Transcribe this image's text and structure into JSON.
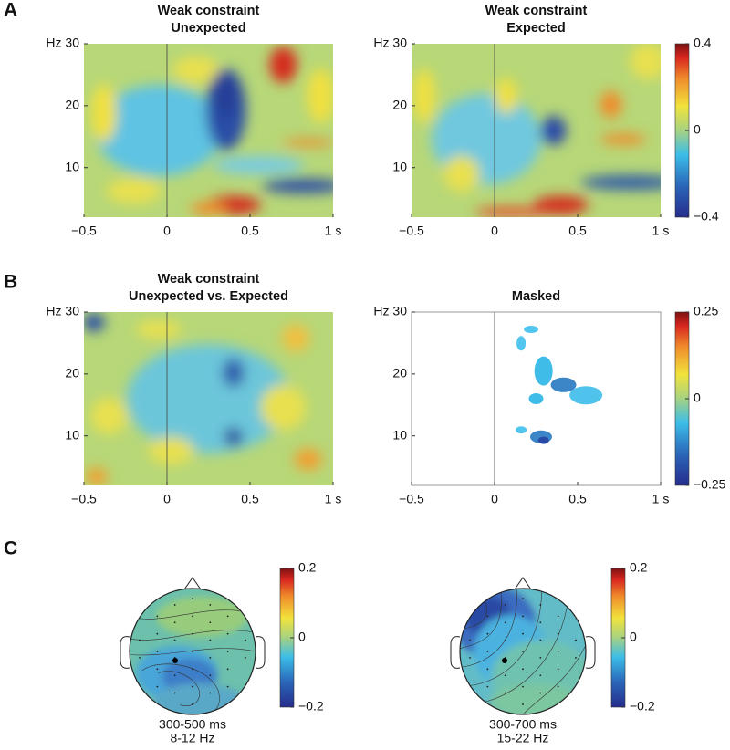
{
  "panel_labels": [
    "A",
    "B",
    "C"
  ],
  "chart_data": [
    {
      "type": "heatmap",
      "title": [
        "Weak constraint",
        "Unexpected"
      ],
      "xlim": [
        -0.5,
        1
      ],
      "ylim": [
        2,
        30
      ],
      "xticks": [
        {
          "value": -0.5,
          "label": "−0.5"
        },
        0,
        0.5,
        {
          "value": 1,
          "label": "1 s"
        }
      ],
      "yticks": [
        10,
        20,
        {
          "value": 30,
          "label": "Hz 30"
        }
      ],
      "onset_line": 0
    },
    {
      "type": "heatmap",
      "title": [
        "Weak constraint",
        "Expected"
      ],
      "xlim": [
        -0.5,
        1
      ],
      "ylim": [
        2,
        30
      ],
      "xticks": [
        {
          "value": -0.5,
          "label": "−0.5"
        },
        0,
        0.5,
        {
          "value": 1,
          "label": "1 s"
        }
      ],
      "yticks": [
        10,
        20,
        {
          "value": 30,
          "label": "Hz 30"
        }
      ],
      "onset_line": 0,
      "colormap": "jet",
      "clim": [
        -0.4,
        0.4
      ],
      "cticks": [
        {
          "value": -0.4,
          "label": "−0.4"
        },
        0,
        0.4
      ]
    },
    {
      "type": "heatmap",
      "title": [
        "Weak constraint",
        "Unexpected vs. Expected"
      ],
      "xlim": [
        -0.5,
        1
      ],
      "ylim": [
        2,
        30
      ],
      "xticks": [
        {
          "value": -0.5,
          "label": "−0.5"
        },
        0,
        0.5,
        {
          "value": 1,
          "label": "1 s"
        }
      ],
      "yticks": [
        10,
        20,
        {
          "value": 30,
          "label": "Hz 30"
        }
      ],
      "onset_line": 0
    },
    {
      "type": "masked",
      "title": [
        "Masked"
      ],
      "xlim": [
        -0.5,
        1
      ],
      "ylim": [
        2,
        30
      ],
      "xticks": [
        {
          "value": -0.5,
          "label": "−0.5"
        },
        0,
        0.5,
        {
          "value": 1,
          "label": "1 s"
        }
      ],
      "yticks": [
        10,
        20,
        {
          "value": 30,
          "label": "Hz 30"
        }
      ],
      "onset_line": 0,
      "colormap": "jet",
      "clim": [
        -0.25,
        0.25
      ],
      "cticks": [
        {
          "value": -0.25,
          "label": "−0.25"
        },
        0,
        0.25
      ]
    },
    {
      "type": "topoplot",
      "caption": [
        "300-500 ms",
        "8-12 Hz"
      ],
      "colormap": "jet",
      "clim": [
        -0.2,
        0.2
      ],
      "cticks": [
        {
          "value": -0.2,
          "label": "−0.2"
        },
        0,
        0.2
      ]
    },
    {
      "type": "topoplot",
      "caption": [
        "300-700 ms",
        "15-22 Hz"
      ],
      "colormap": "jet",
      "clim": [
        -0.2,
        0.2
      ],
      "cticks": [
        {
          "value": -0.2,
          "label": "−0.2"
        },
        0,
        0.2
      ]
    }
  ]
}
